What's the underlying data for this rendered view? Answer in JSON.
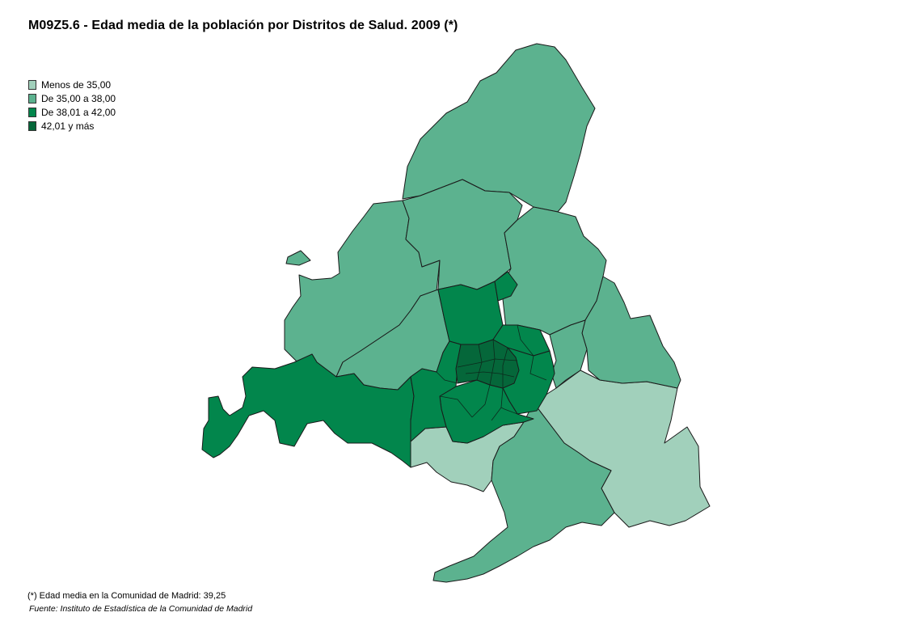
{
  "title": "M09Z5.6 - Edad media de la población por Distritos de Salud. 2009 (*)",
  "legend": {
    "items": [
      {
        "label": "Menos de 35,00",
        "color": "#a1d0bb"
      },
      {
        "label": "De 35,00 a 38,00",
        "color": "#5cb28f"
      },
      {
        "label": "De 38,01 a 42,00",
        "color": "#02864c"
      },
      {
        "label": "42,01 y más",
        "color": "#05673a"
      }
    ]
  },
  "footnote": "(*) Edad  media en la Comunidad de Madrid: 39,25",
  "source": "Fuente: Instituto de Estadística de la Comunidad de Madrid"
}
